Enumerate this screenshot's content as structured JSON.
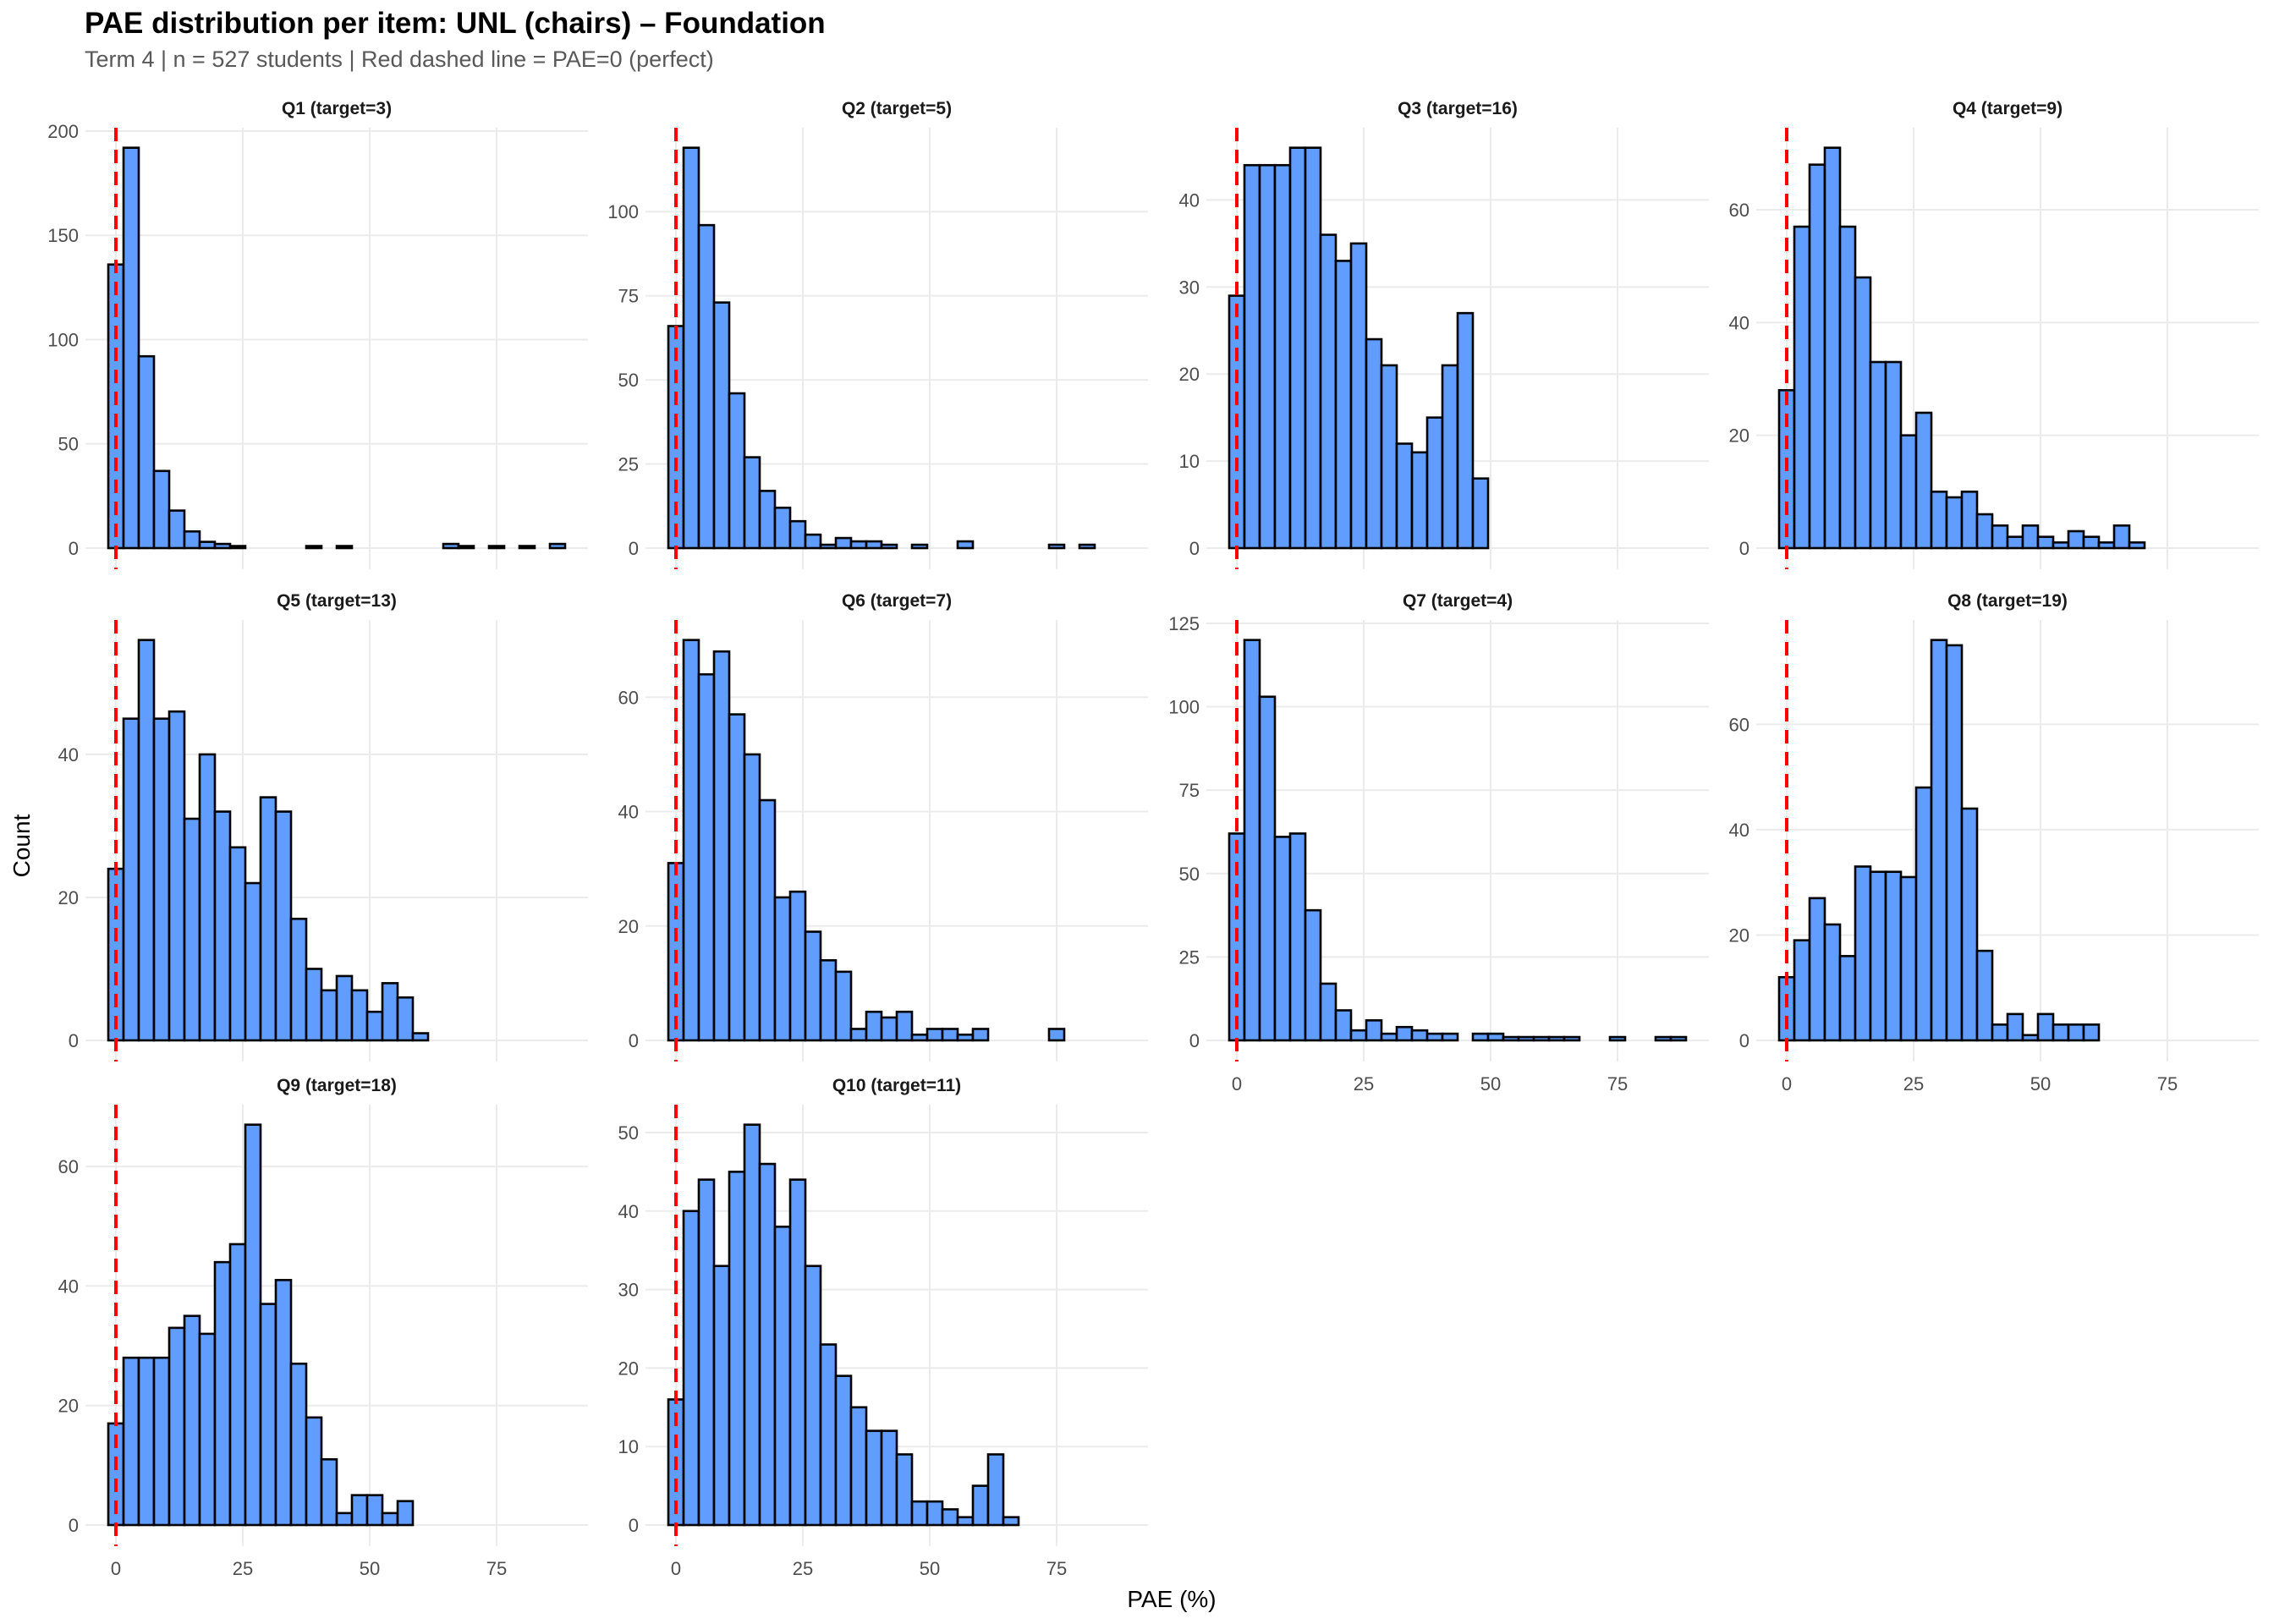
{
  "title": "PAE distribution per item: UNL (chairs) – Foundation",
  "subtitle": "Term 4 | n = 527 students | Red dashed line = PAE=0 (perfect)",
  "colors": {
    "bar_fill": "#619CFF",
    "bar_stroke": "#000000",
    "reference_line": "#FF0000",
    "grid": "#EBEBEB"
  },
  "chart_data": {
    "type": "bar",
    "subtype": "faceted-histogram",
    "title": "PAE distribution per item: UNL (chairs) – Foundation",
    "subtitle": "Term 4 | n = 527 students | Red dashed line = PAE=0 (perfect)",
    "xlabel": "PAE (%)",
    "ylabel": "Count",
    "bin_width": 3,
    "bin_centers_start": 0,
    "bin_count": 30,
    "xlim": [
      -6,
      93
    ],
    "x_ticks": [
      0,
      25,
      50,
      75
    ],
    "x_tick_labels": [
      "0",
      "25",
      "50",
      "75"
    ],
    "reference_line_x": 0,
    "grid": true,
    "panels": [
      {
        "title": "Q1 (target=3)",
        "y_ticks": [
          0,
          50,
          100,
          150,
          200
        ],
        "values": [
          136,
          192,
          92,
          37,
          18,
          8,
          3,
          2,
          1,
          0,
          0,
          0,
          0,
          1,
          0,
          1,
          0,
          0,
          0,
          0,
          0,
          0,
          2,
          1,
          0,
          1,
          0,
          1,
          0,
          2
        ]
      },
      {
        "title": "Q2 (target=5)",
        "y_ticks": [
          0,
          25,
          50,
          75,
          100
        ],
        "values": [
          66,
          119,
          96,
          73,
          46,
          27,
          17,
          12,
          8,
          4,
          1,
          3,
          2,
          2,
          1,
          0,
          1,
          0,
          0,
          2,
          0,
          0,
          0,
          0,
          0,
          1,
          0,
          1,
          0,
          0
        ]
      },
      {
        "title": "Q3 (target=16)",
        "y_ticks": [
          0,
          10,
          20,
          30,
          40
        ],
        "values": [
          29,
          44,
          44,
          44,
          46,
          46,
          36,
          33,
          35,
          24,
          21,
          12,
          11,
          15,
          21,
          27,
          8,
          0,
          0,
          0,
          0,
          0,
          0,
          0,
          0,
          0,
          0,
          0,
          0,
          0
        ]
      },
      {
        "title": "Q4 (target=9)",
        "y_ticks": [
          0,
          20,
          40,
          60
        ],
        "values": [
          28,
          57,
          68,
          71,
          57,
          48,
          33,
          33,
          20,
          24,
          10,
          9,
          10,
          6,
          4,
          2,
          4,
          2,
          1,
          3,
          2,
          1,
          4,
          1,
          0,
          0,
          0,
          0,
          0,
          0
        ]
      },
      {
        "title": "Q5 (target=13)",
        "y_ticks": [
          0,
          20,
          40
        ],
        "values": [
          24,
          45,
          56,
          45,
          46,
          31,
          40,
          32,
          27,
          22,
          34,
          32,
          17,
          10,
          7,
          9,
          7,
          4,
          8,
          6,
          1,
          0,
          0,
          0,
          0,
          0,
          0,
          0,
          0,
          0
        ]
      },
      {
        "title": "Q6 (target=7)",
        "y_ticks": [
          0,
          20,
          40,
          60
        ],
        "values": [
          31,
          70,
          64,
          68,
          57,
          50,
          42,
          25,
          26,
          19,
          14,
          12,
          2,
          5,
          4,
          5,
          1,
          2,
          2,
          1,
          2,
          0,
          0,
          0,
          0,
          2,
          0,
          0,
          0,
          0
        ]
      },
      {
        "title": "Q7 (target=4)",
        "y_ticks": [
          0,
          25,
          50,
          75,
          100,
          125
        ],
        "values": [
          62,
          120,
          103,
          61,
          62,
          39,
          17,
          9,
          3,
          6,
          2,
          4,
          3,
          2,
          2,
          0,
          2,
          2,
          1,
          1,
          1,
          1,
          1,
          0,
          0,
          1,
          0,
          0,
          1,
          1
        ]
      },
      {
        "title": "Q8 (target=19)",
        "y_ticks": [
          0,
          20,
          40,
          60
        ],
        "values": [
          12,
          19,
          27,
          22,
          16,
          33,
          32,
          32,
          31,
          48,
          76,
          75,
          44,
          17,
          3,
          5,
          1,
          5,
          3,
          3,
          3,
          0,
          0,
          0,
          0,
          0,
          0,
          0,
          0,
          0
        ]
      },
      {
        "title": "Q9 (target=18)",
        "y_ticks": [
          0,
          20,
          40,
          60
        ],
        "values": [
          17,
          28,
          28,
          28,
          33,
          35,
          32,
          44,
          47,
          67,
          37,
          41,
          27,
          18,
          11,
          2,
          5,
          5,
          2,
          4,
          0,
          0,
          0,
          0,
          0,
          0,
          0,
          0,
          0,
          0
        ]
      },
      {
        "title": "Q10 (target=11)",
        "y_ticks": [
          0,
          10,
          20,
          30,
          40,
          50
        ],
        "values": [
          16,
          40,
          44,
          33,
          45,
          51,
          46,
          38,
          44,
          33,
          23,
          19,
          15,
          12,
          12,
          9,
          3,
          3,
          2,
          1,
          5,
          9,
          1,
          0,
          0,
          0,
          0,
          0,
          0,
          0
        ]
      }
    ]
  }
}
